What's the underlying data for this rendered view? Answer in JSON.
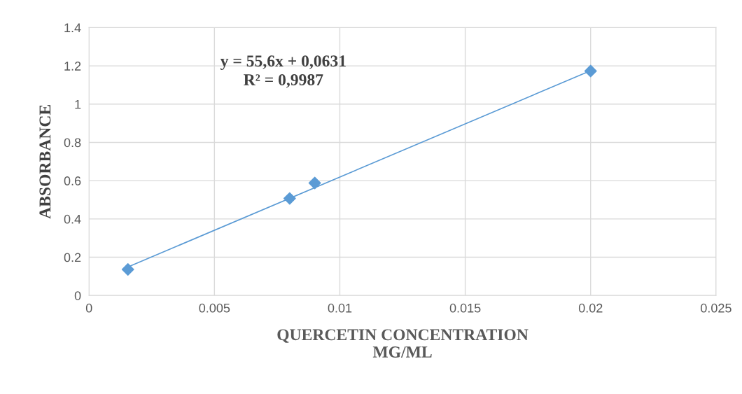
{
  "chart_data": {
    "type": "scatter",
    "xlabel": "QUERCETIN CONCENTRATION\nMG/ML",
    "ylabel": "ABSORBANCE",
    "x": [
      0.00155,
      0.008,
      0.009,
      0.02
    ],
    "series": [
      {
        "color": "#5b9bd5",
        "values": [
          0.136,
          0.507,
          0.588,
          1.173
        ],
        "marker": "diamond"
      },
      {
        "type": "line",
        "color": "#5b9bd5",
        "x": [
          0.00155,
          0.02
        ],
        "values": [
          0.149,
          1.175
        ],
        "marker": "none",
        "line_style": "solid"
      }
    ],
    "annotations": [
      "y = 55,6x + 0,0631",
      "R² = 0,9987"
    ],
    "xlim": [
      0,
      0.025
    ],
    "xticks": [
      0,
      0.005,
      0.01,
      0.015,
      0.02,
      0.025
    ],
    "ylim": [
      0,
      1.4
    ],
    "yticks": [
      0,
      0.2,
      0.4,
      0.6,
      0.8,
      1,
      1.2,
      1.4
    ],
    "grid": true,
    "legend": false
  }
}
